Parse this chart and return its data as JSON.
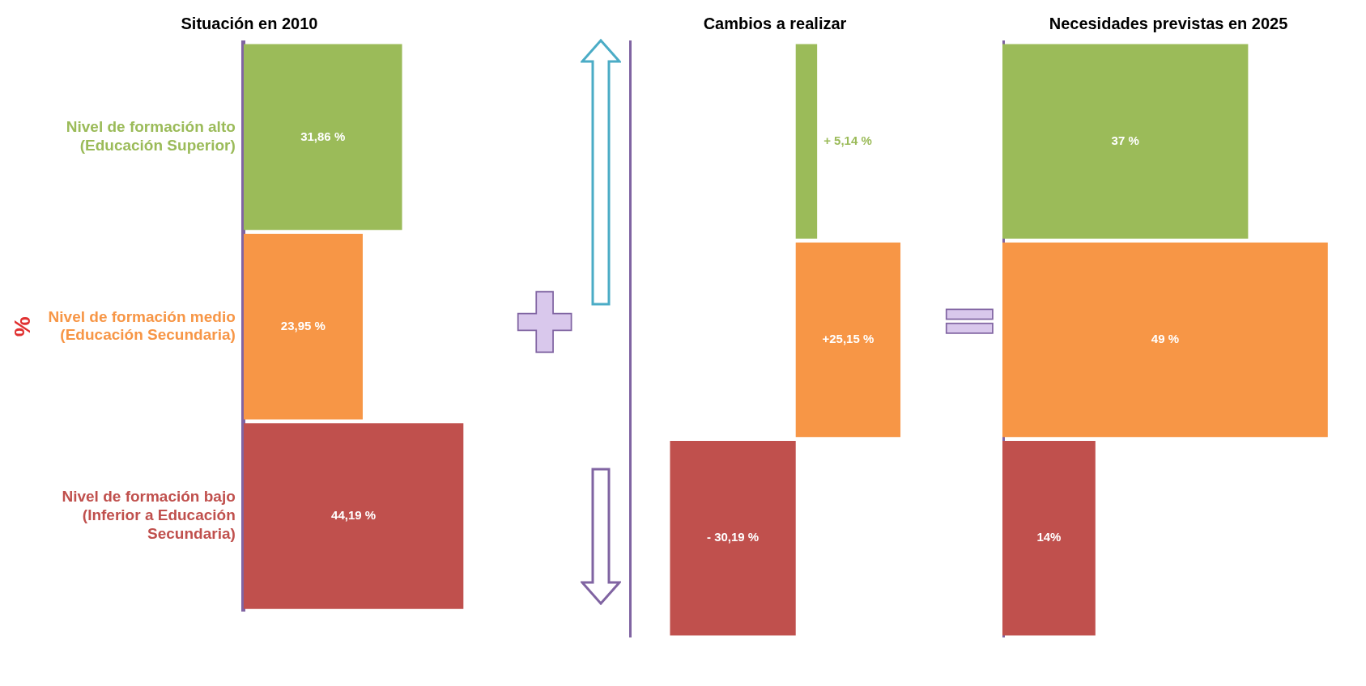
{
  "chart_data": [
    {
      "type": "bar",
      "orientation": "horizontal",
      "title": "Situación en 2010",
      "ylabel": "%",
      "tick_labels": "y",
      "grid": false,
      "legend": false,
      "categories": [
        "Nivel de formación alto (Educación Superior)",
        "Nivel de formación medio (Educación Secundaria)",
        "Nivel de formación bajo (Inferior a Educación Secundaria)"
      ],
      "values": [
        31.86,
        23.95,
        44.19
      ],
      "value_labels": [
        "31,86 %",
        "23,95 %",
        "44,19 %"
      ],
      "colors": [
        "#9bbb59",
        "#f79646",
        "#c0504d"
      ]
    },
    {
      "type": "bar",
      "orientation": "horizontal",
      "title": "Cambios a realizar",
      "tick_labels": false,
      "grid": false,
      "legend": false,
      "categories": [
        null,
        null,
        null
      ],
      "values": [
        5.14,
        25.15,
        -30.19
      ],
      "value_labels": [
        "+ 5,14 %",
        "+25,15 %",
        "- 30,19 %"
      ],
      "colors": [
        "#9bbb59",
        "#f79646",
        "#c0504d"
      ]
    },
    {
      "type": "bar",
      "orientation": "horizontal",
      "title": "Necesidades previstas en 2025",
      "tick_labels": false,
      "grid": false,
      "legend": false,
      "categories": [
        null,
        null,
        null
      ],
      "values": [
        37,
        49,
        14
      ],
      "value_labels": [
        "37 %",
        "49 %",
        "14%"
      ],
      "colors": [
        "#9bbb59",
        "#f79646",
        "#c0504d"
      ]
    }
  ]
}
